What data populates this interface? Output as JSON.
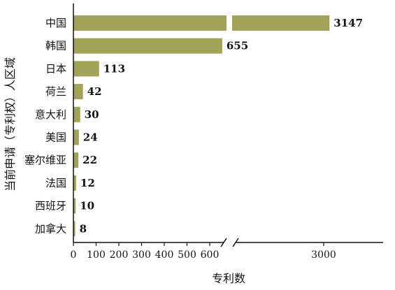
{
  "colors": {
    "bar": "#a3a259",
    "axis": "#111111"
  },
  "chart_data": {
    "type": "bar",
    "orientation": "horizontal",
    "categories": [
      "中国",
      "韩国",
      "日本",
      "荷兰",
      "意大利",
      "美国",
      "塞尔维亚",
      "法国",
      "西班牙",
      "加拿大"
    ],
    "values": [
      3147,
      655,
      113,
      42,
      30,
      24,
      22,
      12,
      10,
      8
    ],
    "value_labels": [
      "3147",
      "655",
      "113",
      "42",
      "30",
      "24",
      "22",
      "12",
      "10",
      "8"
    ],
    "xticks": [
      "0",
      "100",
      "200",
      "300",
      "400",
      "500",
      "600",
      "3000"
    ],
    "xlabel": "专利数",
    "ylabel": "当前申请（专利权）人区域",
    "axis_break": true,
    "grid": false
  }
}
